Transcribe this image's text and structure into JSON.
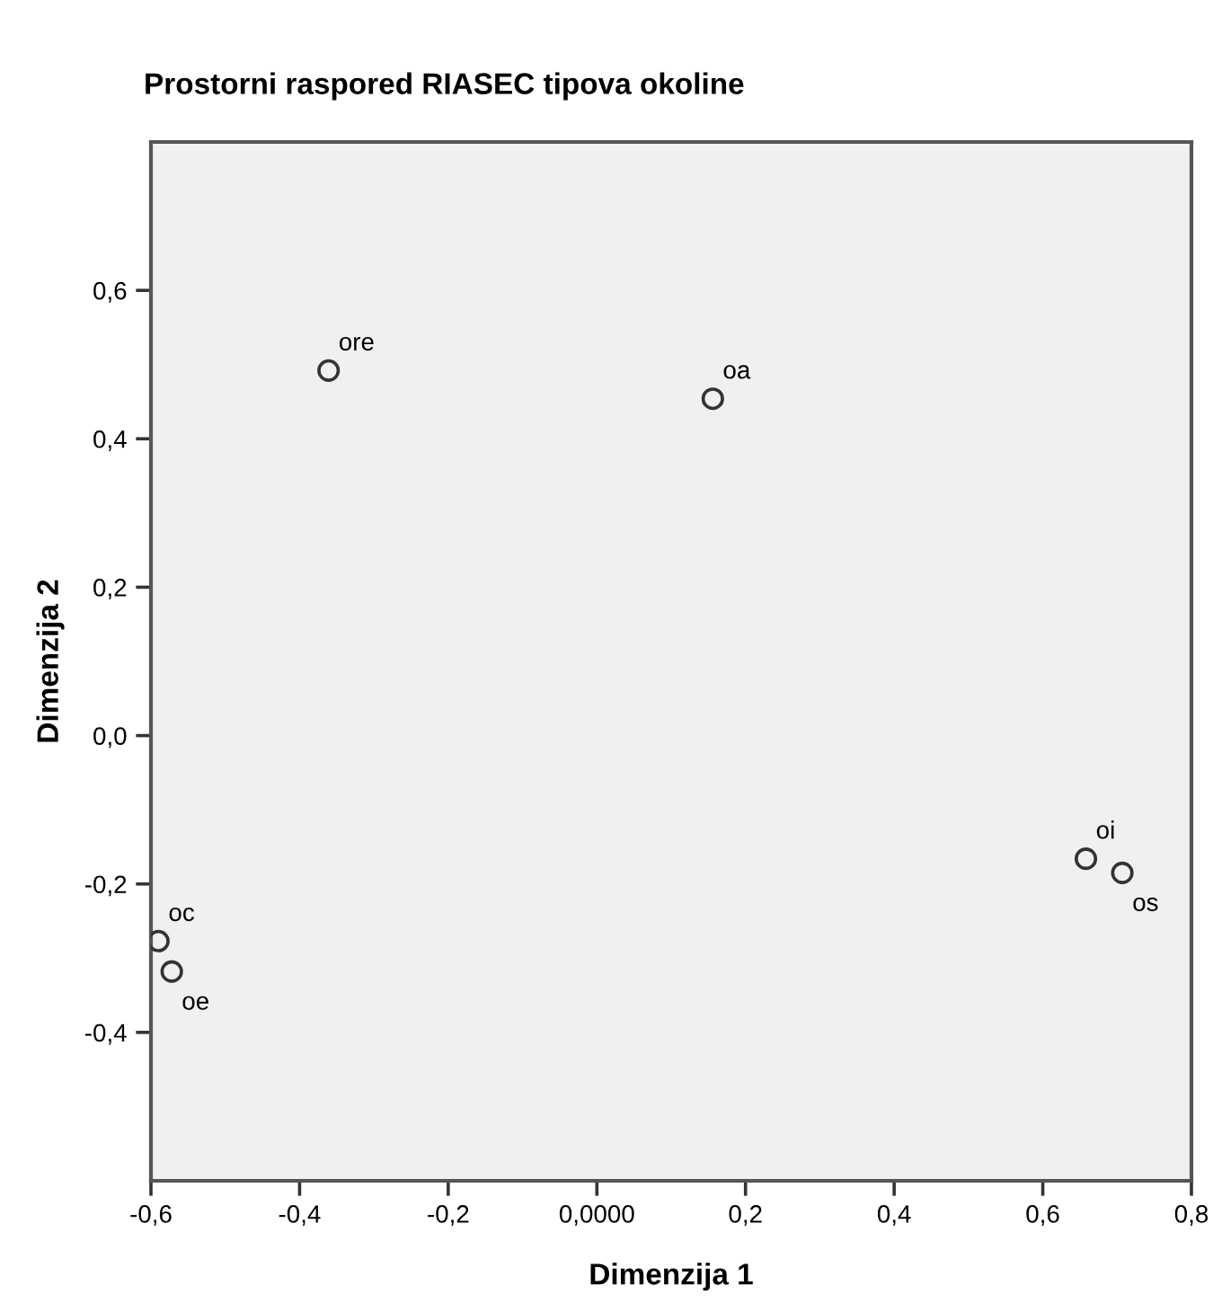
{
  "chart_data": {
    "type": "scatter",
    "title": "Prostorni raspored RIASEC tipova okoline",
    "xlabel": "Dimenzija 1",
    "ylabel": "Dimenzija 2",
    "x": [
      -0.361,
      0.156,
      0.658,
      0.707,
      -0.59,
      -0.572
    ],
    "series": [
      {
        "color": "#333333",
        "values": [
          0.492,
          0.454,
          -0.166,
          -0.185,
          -0.277,
          -0.318
        ]
      }
    ],
    "annotations": [
      {
        "text": "ore",
        "x": -0.361,
        "y": 0.492
      },
      {
        "text": "oa",
        "x": 0.156,
        "y": 0.454
      },
      {
        "text": "oi",
        "x": 0.658,
        "y": -0.166
      },
      {
        "text": "os",
        "x": 0.707,
        "y": -0.185
      },
      {
        "text": "oc",
        "x": -0.59,
        "y": -0.277
      },
      {
        "text": "oe",
        "x": -0.572,
        "y": -0.318
      }
    ],
    "xlim": [
      -0.6,
      0.8
    ],
    "ylim": [
      -0.6,
      0.8
    ],
    "xticks": [
      {
        "value": -0.6,
        "label": "-0,6"
      },
      {
        "value": -0.4,
        "label": "-0,4"
      },
      {
        "value": -0.2,
        "label": "-0,2"
      },
      {
        "value": 0,
        "label": "0,0000"
      },
      {
        "value": 0.2,
        "label": "0,2"
      },
      {
        "value": 0.4,
        "label": "0,4"
      },
      {
        "value": 0.6,
        "label": "0,6"
      },
      {
        "value": 0.8,
        "label": "0,8"
      }
    ],
    "yticks": [
      {
        "value": -0.4,
        "label": "-0,4"
      },
      {
        "value": -0.2,
        "label": "-0,2"
      },
      {
        "value": 0,
        "label": "0,0"
      },
      {
        "value": 0.2,
        "label": "0,2"
      },
      {
        "value": 0.4,
        "label": "0,4"
      },
      {
        "value": 0.6,
        "label": "0,6"
      }
    ],
    "marker": "circle"
  }
}
